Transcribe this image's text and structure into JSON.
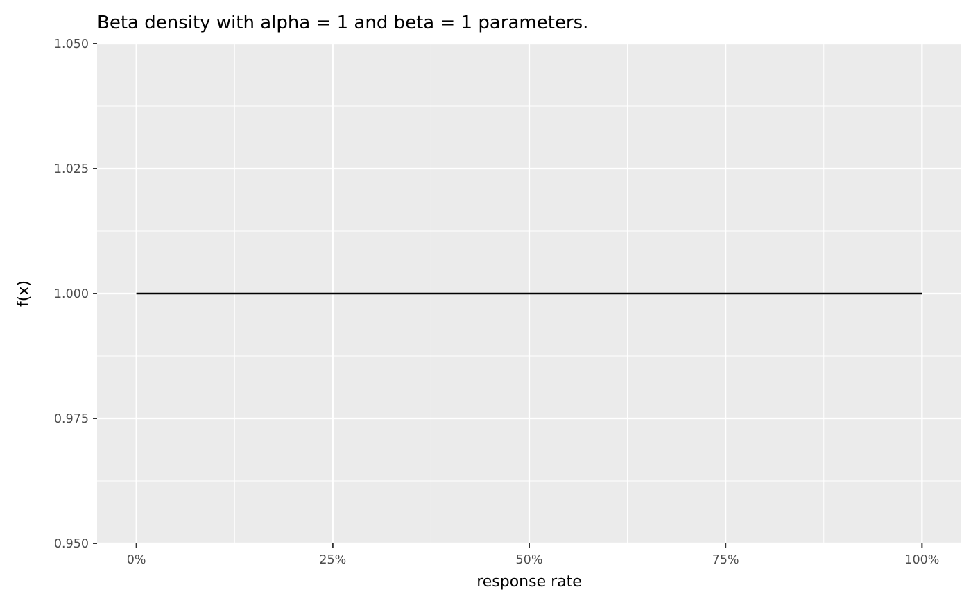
{
  "chart_data": {
    "type": "line",
    "title": "Beta density with alpha = 1 and beta = 1 parameters.",
    "xlabel": "response rate",
    "ylabel": "f(x)",
    "xlim": [
      -0.05,
      1.05
    ],
    "ylim": [
      0.95,
      1.05
    ],
    "x_ticks": [
      0,
      0.25,
      0.5,
      0.75,
      1
    ],
    "x_tick_labels": [
      "0%",
      "25%",
      "50%",
      "75%",
      "100%"
    ],
    "y_ticks": [
      0.95,
      0.975,
      1.0,
      1.025,
      1.05
    ],
    "y_tick_labels": [
      "0.950",
      "0.975",
      "1.000",
      "1.025",
      "1.050"
    ],
    "grid": true,
    "series": [
      {
        "x": [
          0,
          0.25,
          0.5,
          0.75,
          1
        ],
        "y": [
          1,
          1,
          1,
          1,
          1
        ],
        "color": "#000000"
      }
    ],
    "panel_background": "#ebebeb",
    "grid_color": "#ffffff"
  }
}
